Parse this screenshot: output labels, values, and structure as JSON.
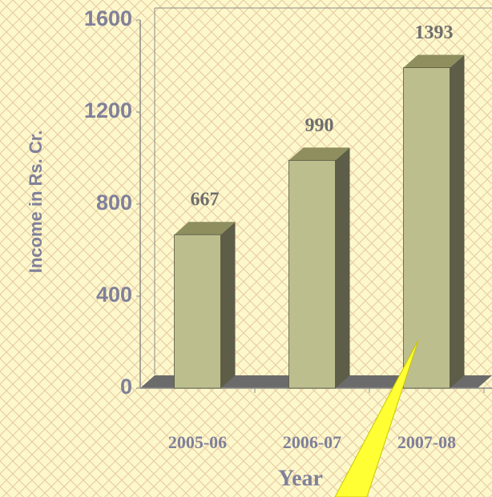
{
  "chart_data": {
    "type": "bar",
    "categories": [
      "2005-06",
      "2006-07",
      "2007-08"
    ],
    "values": [
      667,
      990,
      1393
    ],
    "color": "#bdbe8e",
    "ylim": [
      0,
      1600
    ],
    "yticks": [
      0,
      400,
      800,
      1200,
      1600
    ],
    "ylabel": "Income in Rs. Cr.",
    "xlabel": "Year"
  }
}
